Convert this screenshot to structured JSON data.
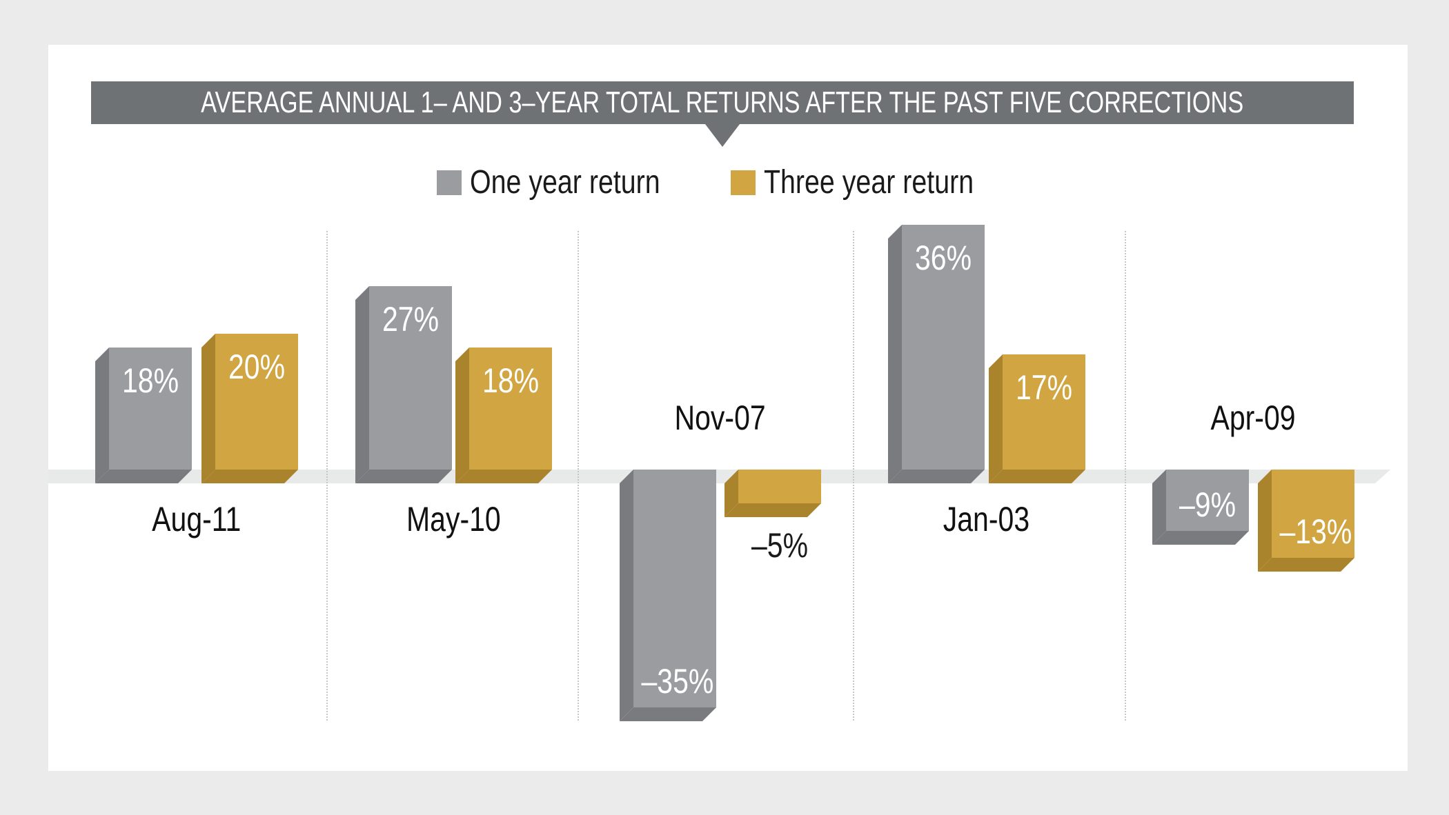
{
  "chart_data": {
    "type": "bar",
    "title": "AVERAGE ANNUAL 1– AND 3–YEAR TOTAL RETURNS AFTER THE PAST FIVE CORRECTIONS",
    "categories": [
      "Aug-11",
      "May-10",
      "Nov-07",
      "Jan-03",
      "Apr-09"
    ],
    "series": [
      {
        "name": "One year return",
        "values": [
          18,
          27,
          -35,
          36,
          -9
        ],
        "labels": [
          "18%",
          "27%",
          "–35%",
          "36%",
          "–9%"
        ],
        "face_color": "#9a9c9f",
        "side_color": "#797b7e"
      },
      {
        "name": "Three year return",
        "values": [
          20,
          18,
          -5,
          17,
          -13
        ],
        "labels": [
          "20%",
          "18%",
          "–5%",
          "17%",
          "–13%"
        ],
        "face_color": "#d0a542",
        "side_color": "#a9842c"
      }
    ],
    "ylim": [
      -40,
      40
    ],
    "grid": false,
    "legend_position": "top",
    "value_label_color_inside": "#ffffff",
    "value_label_color_outside": "#1a1a1a",
    "colors": {
      "title_bar": "#6f7275",
      "page_background": "#ebebeb",
      "panel_background": "#ffffff",
      "baseline_band": "#e8e9e9",
      "separator_dots": "#c4c6c7"
    }
  }
}
